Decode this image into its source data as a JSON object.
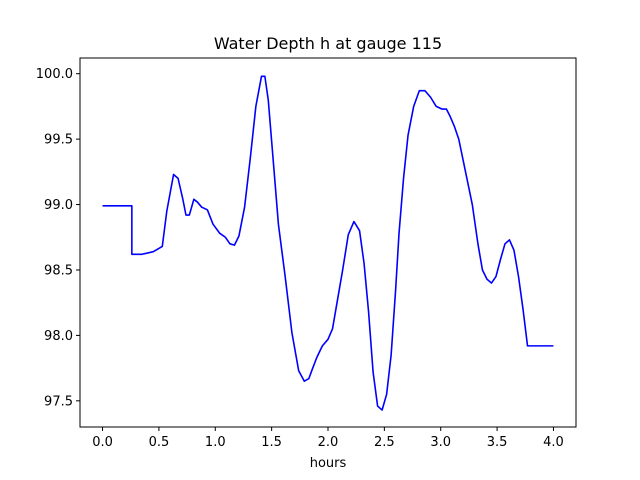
{
  "chart_data": {
    "type": "line",
    "title": "Water Depth h at gauge 115",
    "xlabel": "hours",
    "ylabel": "",
    "xlim": [
      -0.2,
      4.2
    ],
    "ylim": [
      97.3,
      100.12
    ],
    "xticks": [
      0.0,
      0.5,
      1.0,
      1.5,
      2.0,
      2.5,
      3.0,
      3.5,
      4.0
    ],
    "xtick_labels": [
      "0.0",
      "0.5",
      "1.0",
      "1.5",
      "2.0",
      "2.5",
      "3.0",
      "3.5",
      "4.0"
    ],
    "yticks": [
      97.5,
      98.0,
      98.5,
      99.0,
      99.5,
      100.0
    ],
    "ytick_labels": [
      "97.5",
      "98.0",
      "98.5",
      "99.0",
      "99.5",
      "100.0"
    ],
    "grid": false,
    "line_color": "#0000ff",
    "series": [
      {
        "name": "",
        "x": [
          0.0,
          0.26,
          0.26,
          0.35,
          0.45,
          0.53,
          0.57,
          0.63,
          0.67,
          0.71,
          0.74,
          0.77,
          0.81,
          0.84,
          0.88,
          0.93,
          0.98,
          1.04,
          1.09,
          1.13,
          1.17,
          1.21,
          1.26,
          1.31,
          1.36,
          1.41,
          1.44,
          1.47,
          1.51,
          1.56,
          1.62,
          1.68,
          1.74,
          1.79,
          1.83,
          1.86,
          1.9,
          1.95,
          2.0,
          2.04,
          2.08,
          2.13,
          2.18,
          2.23,
          2.28,
          2.32,
          2.36,
          2.4,
          2.44,
          2.48,
          2.52,
          2.56,
          2.6,
          2.63,
          2.67,
          2.71,
          2.76,
          2.81,
          2.86,
          2.91,
          2.96,
          3.01,
          3.05,
          3.08,
          3.12,
          3.16,
          3.22,
          3.28,
          3.33,
          3.37,
          3.41,
          3.45,
          3.49,
          3.53,
          3.57,
          3.61,
          3.65,
          3.69,
          3.73,
          3.77,
          3.81,
          3.84,
          3.87,
          3.9,
          3.94,
          3.97,
          4.0
        ],
        "y": [
          98.99,
          98.99,
          98.62,
          98.62,
          98.64,
          98.68,
          98.95,
          99.23,
          99.2,
          99.05,
          98.92,
          98.92,
          99.04,
          99.02,
          98.98,
          98.96,
          98.85,
          98.78,
          98.75,
          98.7,
          98.69,
          98.76,
          98.98,
          99.35,
          99.75,
          99.98,
          99.98,
          99.8,
          99.38,
          98.85,
          98.45,
          98.02,
          97.73,
          97.65,
          97.67,
          97.74,
          97.83,
          97.92,
          97.97,
          98.05,
          98.25,
          98.5,
          98.77,
          98.87,
          98.8,
          98.55,
          98.18,
          97.72,
          97.46,
          97.43,
          97.55,
          97.85,
          98.35,
          98.78,
          99.2,
          99.53,
          99.75,
          99.87,
          99.87,
          99.82,
          99.75,
          99.73,
          99.73,
          99.68,
          99.6,
          99.5,
          99.25,
          99.0,
          98.7,
          98.5,
          98.43,
          98.4,
          98.45,
          98.58,
          98.7,
          98.73,
          98.65,
          98.45,
          98.2,
          97.92,
          97.92,
          97.92,
          97.92,
          97.92,
          97.92,
          97.92,
          97.92
        ]
      }
    ]
  }
}
